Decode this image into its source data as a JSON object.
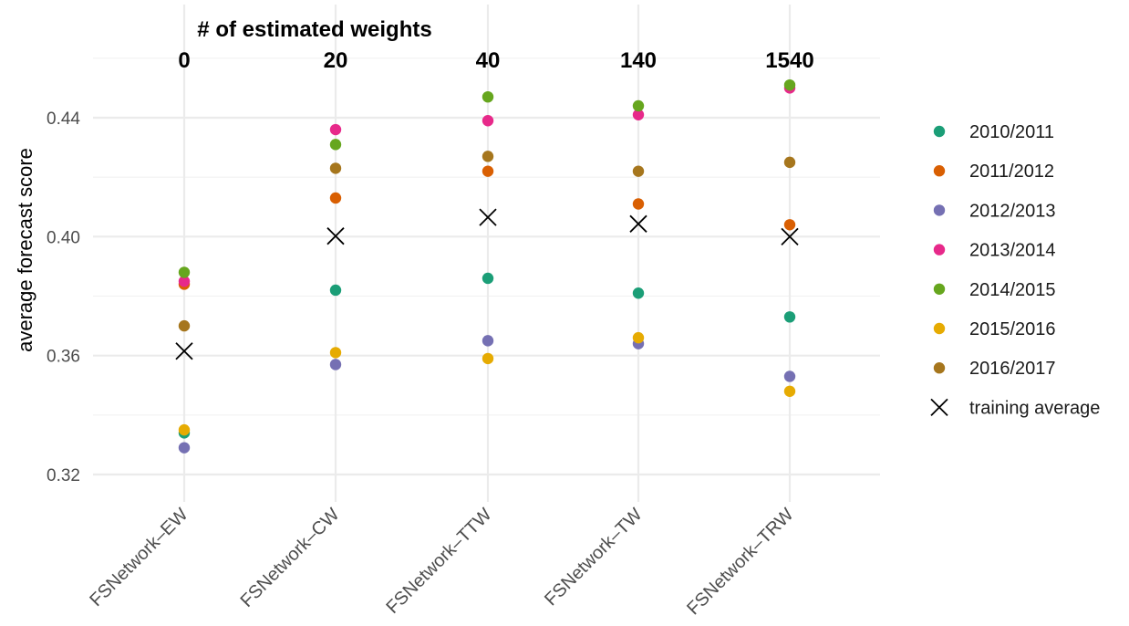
{
  "chart_data": {
    "type": "scatter",
    "top_axis_title": "# of estimated weights",
    "top_axis_labels": [
      "0",
      "20",
      "40",
      "140",
      "1540"
    ],
    "categories": [
      "FSNetwork–EW",
      "FSNetwork–CW",
      "FSNetwork–TTW",
      "FSNetwork–TW",
      "FSNetwork–TRW"
    ],
    "ylabel": "average forecast score",
    "ylim": [
      0.31,
      0.455
    ],
    "yticks": [
      0.32,
      0.36,
      0.4,
      0.44
    ],
    "ytick_labels": [
      "0.32",
      "0.36",
      "0.40",
      "0.44"
    ],
    "grid": true,
    "legend_position": "right",
    "series": [
      {
        "name": "2010/2011",
        "color": "#1b9e77",
        "marker": "circle",
        "values": [
          0.334,
          0.382,
          0.386,
          0.381,
          0.373
        ]
      },
      {
        "name": "2011/2012",
        "color": "#d95f02",
        "marker": "circle",
        "values": [
          0.384,
          0.413,
          0.422,
          0.411,
          0.404
        ]
      },
      {
        "name": "2012/2013",
        "color": "#7570b3",
        "marker": "circle",
        "values": [
          0.329,
          0.357,
          0.365,
          0.364,
          0.353
        ]
      },
      {
        "name": "2013/2014",
        "color": "#e7298a",
        "marker": "circle",
        "values": [
          0.385,
          0.436,
          0.439,
          0.441,
          0.45
        ]
      },
      {
        "name": "2014/2015",
        "color": "#66a61e",
        "marker": "circle",
        "values": [
          0.388,
          0.431,
          0.447,
          0.444,
          0.451
        ]
      },
      {
        "name": "2015/2016",
        "color": "#e6ab02",
        "marker": "circle",
        "values": [
          0.335,
          0.361,
          0.359,
          0.366,
          0.348
        ]
      },
      {
        "name": "2016/2017",
        "color": "#a6761d",
        "marker": "circle",
        "values": [
          0.37,
          0.423,
          0.427,
          0.422,
          0.425
        ]
      },
      {
        "name": "training average",
        "color": "#000000",
        "marker": "x",
        "values": [
          0.3615,
          0.4002,
          0.4065,
          0.4043,
          0.4
        ]
      }
    ]
  }
}
